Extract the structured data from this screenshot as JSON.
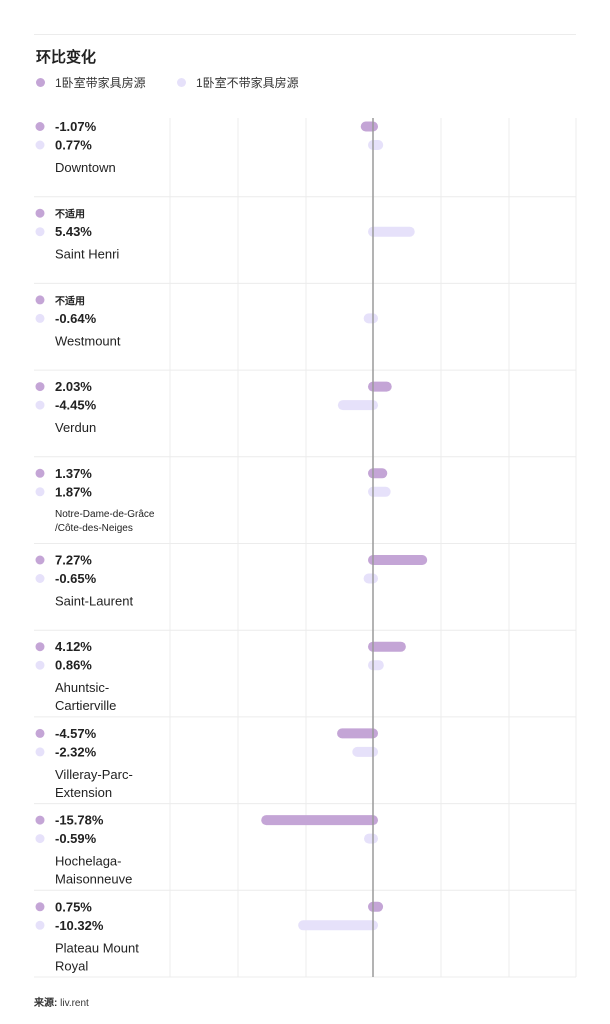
{
  "chart_data": {
    "type": "bar",
    "orientation": "horizontal",
    "title": "环比变化",
    "xlim": [
      -30,
      30
    ],
    "series": [
      {
        "name": "1卧室带家具房源",
        "color": "#c4a5d6"
      },
      {
        "name": "1卧室不带家具房源",
        "color": "#e6e1fa"
      }
    ],
    "rows": [
      {
        "label": [
          "Downtown"
        ],
        "values": [
          -1.07,
          0.77
        ],
        "texts": [
          "-1.07%",
          "0.77%"
        ]
      },
      {
        "label": [
          "Saint Henri"
        ],
        "values": [
          null,
          5.43
        ],
        "texts": [
          "不适用",
          "5.43%"
        ]
      },
      {
        "label": [
          "Westmount"
        ],
        "values": [
          null,
          -0.64
        ],
        "texts": [
          "不适用",
          "-0.64%"
        ]
      },
      {
        "label": [
          "Verdun"
        ],
        "values": [
          2.03,
          -4.45
        ],
        "texts": [
          "2.03%",
          "-4.45%"
        ]
      },
      {
        "label": [
          "Notre-Dame-de-Grâce",
          "/Côte-des-Neiges"
        ],
        "small": true,
        "values": [
          1.37,
          1.87
        ],
        "texts": [
          "1.37%",
          "1.87%"
        ]
      },
      {
        "label": [
          "Saint-Laurent"
        ],
        "values": [
          7.27,
          -0.65
        ],
        "texts": [
          "7.27%",
          "-0.65%"
        ]
      },
      {
        "label": [
          "Ahuntsic-",
          "Cartierville"
        ],
        "values": [
          4.12,
          0.86
        ],
        "texts": [
          "4.12%",
          "0.86%"
        ]
      },
      {
        "label": [
          "Villeray-Parc-",
          "Extension"
        ],
        "values": [
          -4.57,
          -2.32
        ],
        "texts": [
          "-4.57%",
          "-2.32%"
        ]
      },
      {
        "label": [
          "Hochelaga-",
          "Maisonneuve"
        ],
        "values": [
          -15.78,
          -0.59
        ],
        "texts": [
          "-15.78%",
          "-0.59%"
        ]
      },
      {
        "label": [
          "Plateau Mount",
          "Royal"
        ],
        "values": [
          0.75,
          -10.32
        ],
        "texts": [
          "0.75%",
          "-10.32%"
        ]
      }
    ]
  },
  "source": {
    "label": "来源:",
    "value": "liv.rent"
  }
}
